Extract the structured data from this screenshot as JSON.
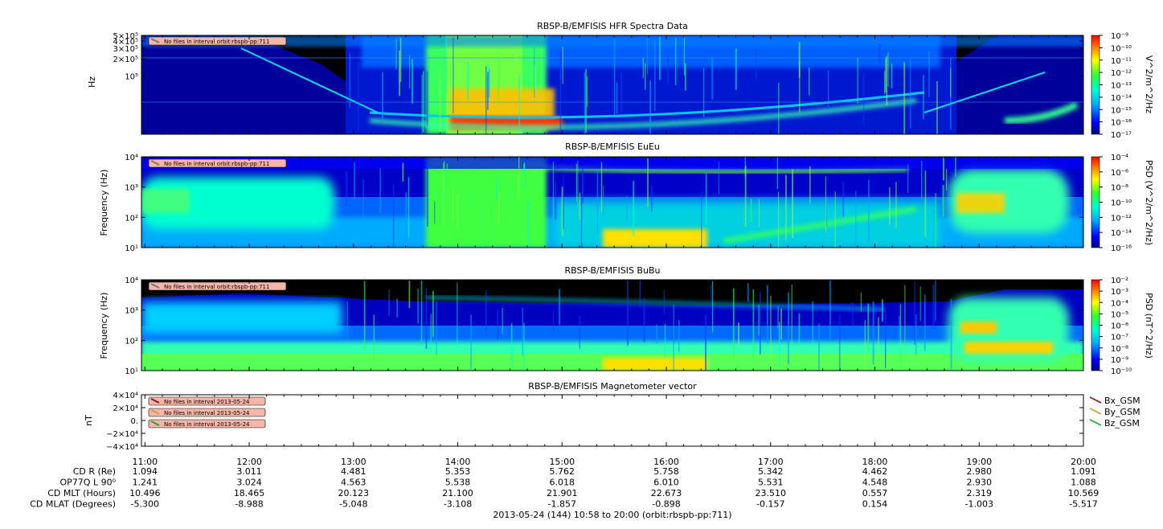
{
  "colors": {
    "background_dark": "#000000",
    "notice_fill": "#f5b5a8",
    "notice_text": "#000000",
    "bx": "#8b1a1a",
    "by": "#c8a040",
    "bz": "#2aa02a"
  },
  "chart_data": [
    {
      "type": "heatmap",
      "title": "RBSP-B/EMFISIS  HFR Spectra Data",
      "ylabel": "Hz",
      "yscale": "log",
      "y_ticks": [
        "5×10⁵",
        "4×10⁵",
        "3×10⁵",
        "2×10⁵",
        "10⁵"
      ],
      "y_tick_values": [
        500000,
        400000,
        300000,
        200000,
        100000
      ],
      "ylim": [
        10000,
        500000
      ],
      "colorbar_label": "V^2/m^2/Hz",
      "colorbar_ticks": [
        "10⁻⁹",
        "10⁻¹⁰",
        "10⁻¹¹",
        "10⁻¹²",
        "10⁻¹³",
        "10⁻¹⁴",
        "10⁻¹⁵",
        "10⁻¹⁶",
        "10⁻¹⁷"
      ],
      "clim_exponents": [
        -17,
        -9
      ],
      "notice": "No files in interval orbit:rbspb-pp:711"
    },
    {
      "type": "heatmap",
      "title": "RBSP-B/EMFISIS  EuEu",
      "ylabel": "Frequency (Hz)",
      "yscale": "log",
      "y_ticks": [
        "10⁴",
        "10³",
        "10²",
        "10¹"
      ],
      "y_tick_values": [
        10000,
        1000,
        100,
        10
      ],
      "ylim": [
        10,
        10000
      ],
      "colorbar_label": "PSD (V^2/m^2/Hz)",
      "colorbar_ticks": [
        "10⁻⁴",
        "10⁻⁶",
        "10⁻⁸",
        "10⁻¹⁰",
        "10⁻¹²",
        "10⁻¹⁴",
        "10⁻¹⁶"
      ],
      "clim_exponents": [
        -16,
        -4
      ],
      "notice": "No files in interval orbit:rbspb-pp:711"
    },
    {
      "type": "heatmap",
      "title": "RBSP-B/EMFISIS  BuBu",
      "ylabel": "Frequency (Hz)",
      "yscale": "log",
      "y_ticks": [
        "10⁴",
        "10³",
        "10²",
        "10¹"
      ],
      "y_tick_values": [
        10000,
        1000,
        100,
        10
      ],
      "ylim": [
        10,
        10000
      ],
      "colorbar_label": "PSD (nT^2/Hz)",
      "colorbar_ticks": [
        "10⁻²",
        "10⁻³",
        "10⁻⁴",
        "10⁻⁵",
        "10⁻⁶",
        "10⁻⁷",
        "10⁻⁸",
        "10⁻⁹",
        "10⁻¹⁰"
      ],
      "clim_exponents": [
        -10,
        -2
      ],
      "notice": "No files in interval orbit:rbspb-pp:711"
    },
    {
      "type": "line",
      "title": "RBSP-B/EMFISIS  Magnetometer vector",
      "ylabel": "nT",
      "y_ticks": [
        "4×10⁴",
        "2×10⁴",
        "0.",
        "−2×10⁴",
        "−4×10⁴"
      ],
      "y_tick_values": [
        40000,
        20000,
        0,
        -20000,
        -40000
      ],
      "ylim": [
        -40000,
        40000
      ],
      "series": [
        {
          "name": "Bx_GSM",
          "values": []
        },
        {
          "name": "By_GSM",
          "values": []
        },
        {
          "name": "Bz_GSM",
          "values": []
        }
      ],
      "notices": [
        "No files in interval 2013-05-24",
        "No files in interval 2013-05-24",
        "No files in interval 2013-05-24"
      ]
    }
  ],
  "x_axis": {
    "ticks": [
      "11:00",
      "12:00",
      "13:00",
      "14:00",
      "15:00",
      "16:00",
      "17:00",
      "18:00",
      "19:00",
      "20:00"
    ],
    "hours": [
      11,
      12,
      13,
      14,
      15,
      16,
      17,
      18,
      19,
      20
    ],
    "xlim_hours": [
      10.9667,
      20.0
    ]
  },
  "ephemeris": [
    {
      "label": "CD R (Re)",
      "values": [
        "1.094",
        "3.011",
        "4.481",
        "5.353",
        "5.762",
        "5.758",
        "5.342",
        "4.462",
        "2.980",
        "1.091"
      ]
    },
    {
      "label": "OP77Q L 90⁰",
      "values": [
        "1.241",
        "3.024",
        "4.563",
        "5.538",
        "6.018",
        "6.010",
        "5.531",
        "4.548",
        "2.930",
        "1.088"
      ]
    },
    {
      "label": "CD MLT (Hours)",
      "values": [
        "10.496",
        "18.465",
        "20.123",
        "21.100",
        "21.901",
        "22.673",
        "23.510",
        "0.557",
        "2.319",
        "10.569"
      ]
    },
    {
      "label": "CD MLAT (Degrees)",
      "values": [
        "-5.300",
        "-8.988",
        "-5.048",
        "-3.108",
        "-1.857",
        "-0.898",
        "-0.157",
        "0.154",
        "-1.003",
        "-5.517"
      ]
    }
  ],
  "footer": "2013-05-24 (144) 10:58 to 20:00 (orbit:rbspb-pp:711)"
}
